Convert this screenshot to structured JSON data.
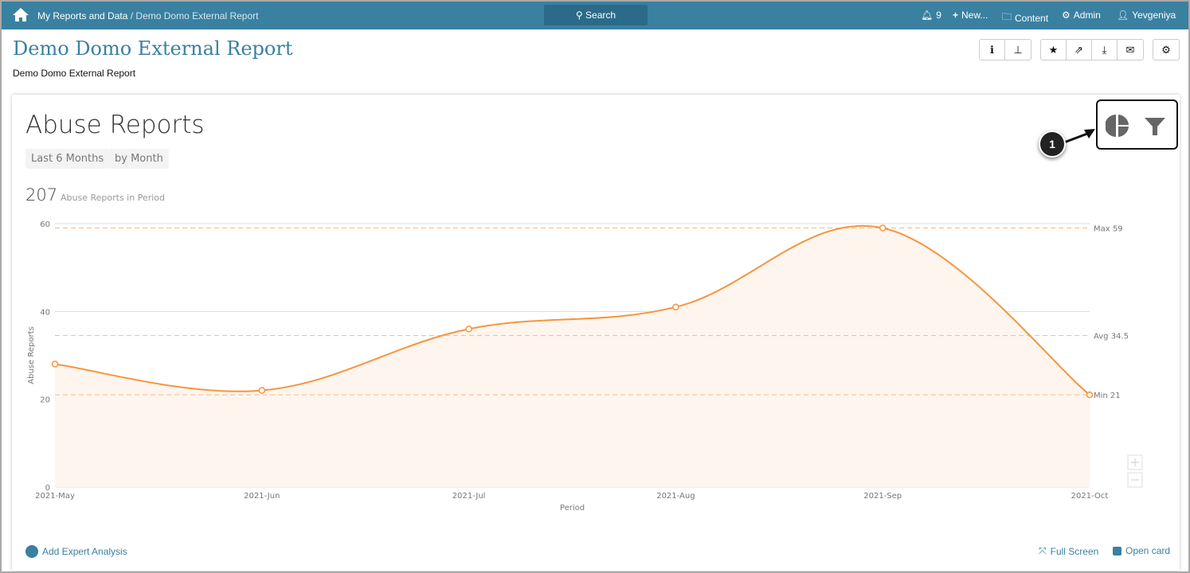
{
  "topbar": {
    "breadcrumb_root": "My Reports and Data",
    "breadcrumb_sep": " / ",
    "breadcrumb_current": "Demo Domo External Report",
    "search_label": "Search",
    "notifications": "9",
    "new_label": "New...",
    "content_label": "Content",
    "admin_label": "Admin",
    "user_label": "Yevgeniya"
  },
  "page": {
    "title": "Demo Domo External Report",
    "subtitle": "Demo Domo External Report"
  },
  "card": {
    "title": "Abuse Reports",
    "filter_period": "Last 6 Months",
    "filter_group": "by Month",
    "total": "207",
    "total_label": "Abuse Reports in Period",
    "callout": "1",
    "add_analysis": "Add Expert Analysis",
    "full_screen": "Full Screen",
    "open_card": "Open card"
  },
  "chart_data": {
    "type": "area",
    "title": "Abuse Reports",
    "xlabel": "Period",
    "ylabel": "Abuse Reports",
    "categories": [
      "2021-May",
      "2021-Jun",
      "2021-Jul",
      "2021-Aug",
      "2021-Sep",
      "2021-Oct"
    ],
    "values": [
      28,
      22,
      36,
      41,
      59,
      21
    ],
    "ylim": [
      0,
      60
    ],
    "yticks": [
      0,
      20,
      40,
      60
    ],
    "reference_lines": [
      {
        "label": "Max 59",
        "value": 59
      },
      {
        "label": "Avg 34.5",
        "value": 34.5
      },
      {
        "label": "Min 21",
        "value": 21
      }
    ],
    "color": "#f7953e",
    "grid": true
  }
}
